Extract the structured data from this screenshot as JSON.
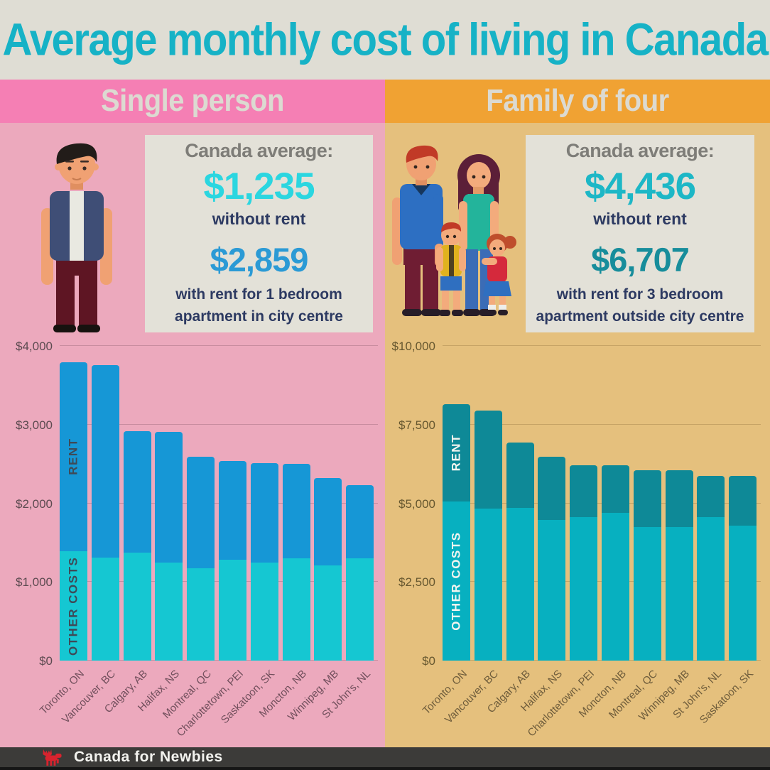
{
  "title": "Average monthly cost of living in Canada",
  "footer": {
    "brand": "Canada for Newbies",
    "icon": "moose-icon"
  },
  "colors": {
    "title_text": "#16b2c6",
    "header_text": "#dcdad1",
    "top_band_bg": "#dfddd4",
    "stats_card_bg": "#e3e1d8",
    "stats_heading_text": "#7e7d78",
    "stats_body_text": "#2d3a62",
    "footer_bg": "#3c3b39",
    "footer_logo_red": "#d8232e"
  },
  "panels": [
    {
      "header": "Single person",
      "illustration": "man-illustration",
      "stats": {
        "heading": "Canada average:",
        "without_rent_value": "$1,235",
        "without_rent_label": "without rent",
        "with_rent_value": "$2,859",
        "with_rent_note": "with rent for 1 bedroom apartment in city centre"
      },
      "colors": {
        "header_bg": "#f57fb4",
        "panel_bg": "#eca9bd",
        "rent": "#1697d6",
        "other": "#15c7d2",
        "series_label": "#3e4a57",
        "axis_text": "#5d4b51",
        "xlabel_text": "#714f5c",
        "grid": "rgba(90,55,70,0.25)",
        "value_without_rent": "#2bd6e0",
        "value_with_rent": "#2b9ad5"
      },
      "chart_data": {
        "type": "bar",
        "stacked": true,
        "ylim": [
          0,
          4000
        ],
        "yticks": [
          {
            "label": "$0",
            "value": 0
          },
          {
            "label": "$1,000",
            "value": 1000
          },
          {
            "label": "$2,000",
            "value": 2000
          },
          {
            "label": "$3,000",
            "value": 3000
          },
          {
            "label": "$4,000",
            "value": 4000
          }
        ],
        "categories": [
          "Toronto, ON",
          "Vancouver, BC",
          "Calgary, AB",
          "Halifax, NS",
          "Montreal, QC",
          "Charlottetown, PEI",
          "Saskatoon, SK",
          "Moncton, NB",
          "Winnipeg, MB",
          "St John's, NL"
        ],
        "series": [
          {
            "name": "OTHER COSTS",
            "values": [
              1390,
              1310,
              1370,
              1250,
              1170,
              1280,
              1250,
              1300,
              1210,
              1300
            ]
          },
          {
            "name": "RENT",
            "values": [
              2400,
              2450,
              1550,
              1660,
              1420,
              1260,
              1260,
              1200,
              1110,
              930
            ]
          }
        ],
        "legend_position": "on-first-bar",
        "grid": true
      }
    },
    {
      "header": "Family of four",
      "illustration": "family-illustration",
      "stats": {
        "heading": "Canada average:",
        "without_rent_value": "$4,436",
        "without_rent_label": "without rent",
        "with_rent_value": "$6,707",
        "with_rent_note": "with rent for 3 bedroom apartment outside city centre"
      },
      "colors": {
        "header_bg": "#f0a233",
        "panel_bg": "#e5c07d",
        "rent": "#0e8997",
        "other": "#07b0c0",
        "series_label": "#f4f5f0",
        "axis_text": "#66572f",
        "xlabel_text": "#6e5c3b",
        "grid": "rgba(120,90,40,0.28)",
        "value_without_rent": "#1db7c6",
        "value_with_rent": "#178d9b"
      },
      "chart_data": {
        "type": "bar",
        "stacked": true,
        "ylim": [
          0,
          10000
        ],
        "yticks": [
          {
            "label": "$0",
            "value": 0
          },
          {
            "label": "$2,500",
            "value": 2500
          },
          {
            "label": "$5,000",
            "value": 5000
          },
          {
            "label": "$7,500",
            "value": 7500
          },
          {
            "label": "$10,000",
            "value": 10000
          }
        ],
        "categories": [
          "Toronto, ON",
          "Vancouver, BC",
          "Calgary, AB",
          "Halifax, NS",
          "Charlottetown, PEI",
          "Moncton, NB",
          "Montreal, QC",
          "Winnipeg, MB",
          "St John's, NL",
          "Saskatoon, SK"
        ],
        "series": [
          {
            "name": "OTHER COSTS",
            "values": [
              5050,
              4820,
              4860,
              4480,
              4570,
              4700,
              4250,
              4250,
              4570,
              4300
            ]
          },
          {
            "name": "RENT",
            "values": [
              3100,
              3130,
              2080,
              2010,
              1630,
              1500,
              1790,
              1790,
              1290,
              1560
            ]
          }
        ],
        "legend_position": "on-first-bar",
        "grid": true
      }
    }
  ]
}
